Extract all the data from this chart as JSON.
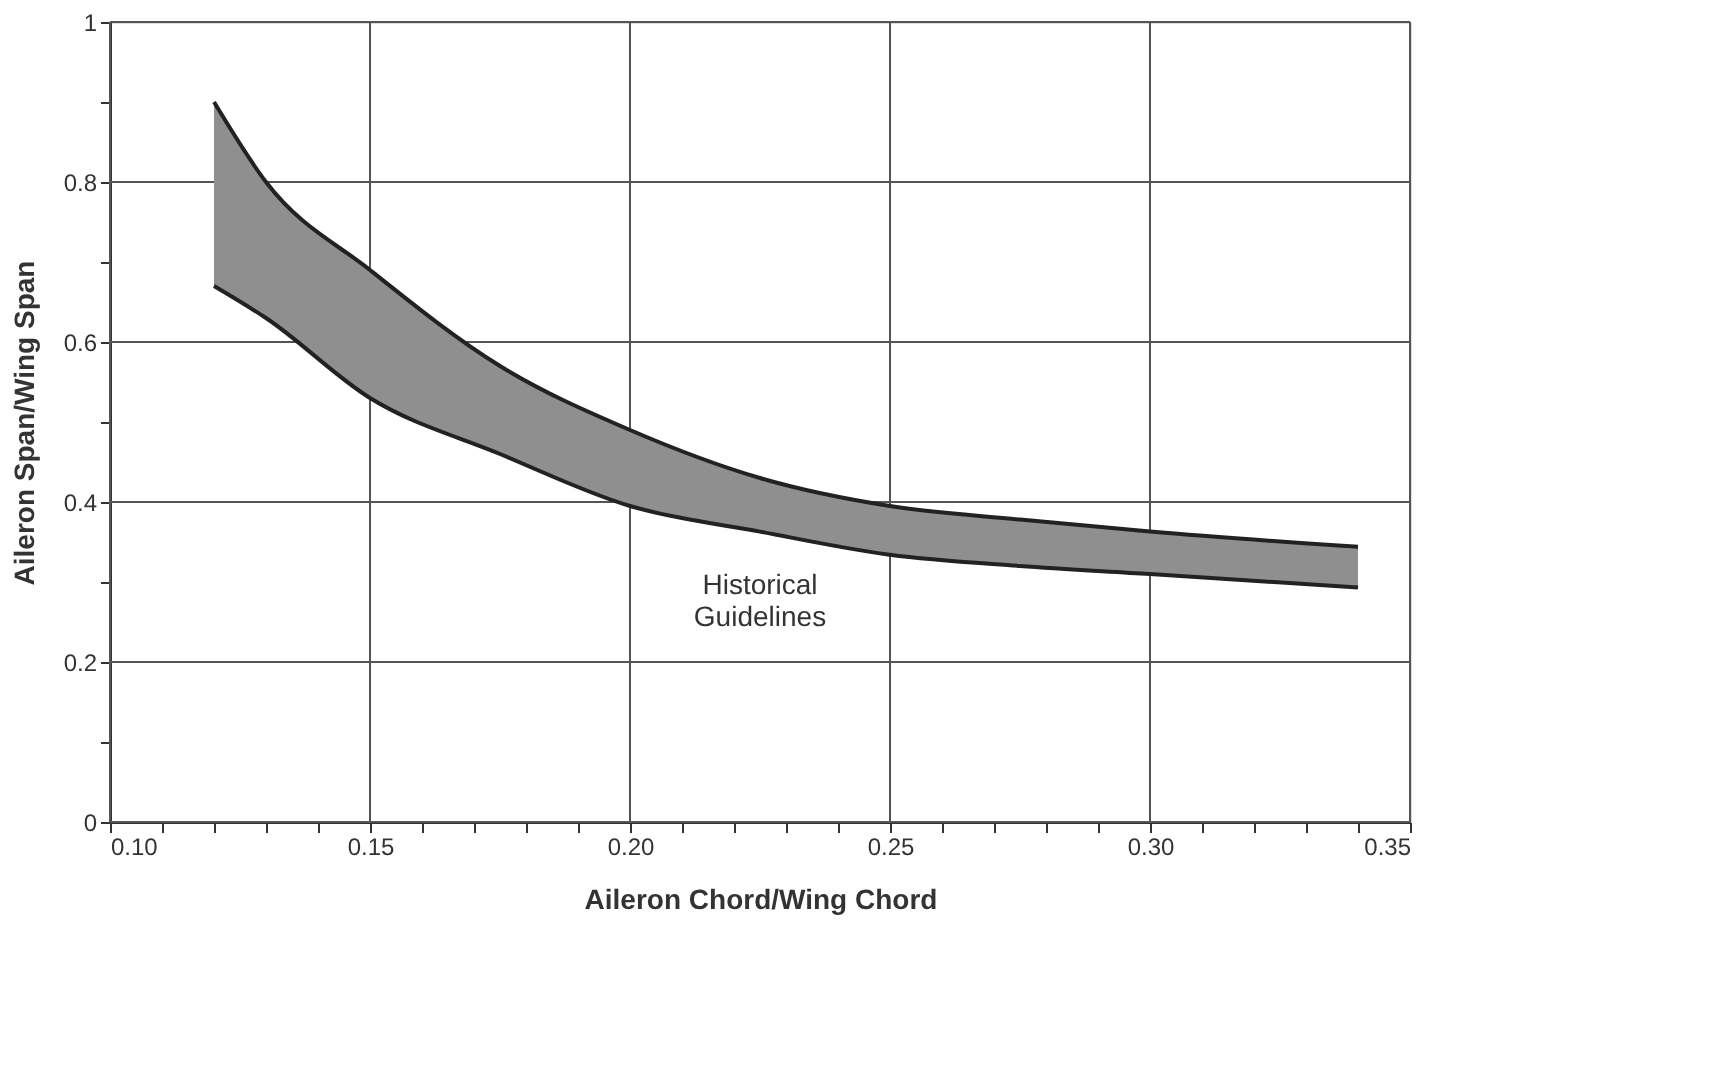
{
  "chart_data": {
    "type": "line",
    "xlabel": "Aileron Chord/Wing Chord",
    "ylabel": "Aileron Span/Wing Span",
    "x": [
      0.12,
      0.13,
      0.15,
      0.175,
      0.2,
      0.225,
      0.25,
      0.275,
      0.3,
      0.34
    ],
    "series": [
      {
        "color": "#222222",
        "values": [
          0.9,
          0.8,
          0.69,
          0.57,
          0.49,
          0.43,
          0.395,
          0.378,
          0.363,
          0.344
        ],
        "lower": [
          0.67,
          0.63,
          0.53,
          0.46,
          0.395,
          0.363,
          0.334,
          0.32,
          0.31,
          0.293
        ],
        "upper": [
          0.9,
          0.8,
          0.69,
          0.57,
          0.49,
          0.43,
          0.395,
          0.378,
          0.363,
          0.344
        ]
      },
      {
        "color": "#222222",
        "values": [
          0.67,
          0.63,
          0.53,
          0.46,
          0.395,
          0.363,
          0.334,
          0.32,
          0.31,
          0.293
        ]
      }
    ],
    "xlim": [
      0.1,
      0.35
    ],
    "xticks": [
      {
        "value": 0.1,
        "label": "0.10"
      },
      {
        "value": 0.11,
        "label": null
      },
      {
        "value": 0.12,
        "label": null
      },
      {
        "value": 0.13,
        "label": null
      },
      {
        "value": 0.14,
        "label": null
      },
      {
        "value": 0.15,
        "label": "0.15"
      },
      {
        "value": 0.16,
        "label": null
      },
      {
        "value": 0.17,
        "label": null
      },
      {
        "value": 0.18,
        "label": null
      },
      {
        "value": 0.19,
        "label": null
      },
      {
        "value": 0.2,
        "label": "0.20"
      },
      {
        "value": 0.21,
        "label": null
      },
      {
        "value": 0.22,
        "label": null
      },
      {
        "value": 0.23,
        "label": null
      },
      {
        "value": 0.24,
        "label": null
      },
      {
        "value": 0.25,
        "label": "0.25"
      },
      {
        "value": 0.26,
        "label": null
      },
      {
        "value": 0.27,
        "label": null
      },
      {
        "value": 0.28,
        "label": null
      },
      {
        "value": 0.29,
        "label": null
      },
      {
        "value": 0.3,
        "label": "0.30"
      },
      {
        "value": 0.31,
        "label": null
      },
      {
        "value": 0.32,
        "label": null
      },
      {
        "value": 0.33,
        "label": null
      },
      {
        "value": 0.34,
        "label": null
      },
      {
        "value": 0.35,
        "label": "0.35"
      }
    ],
    "ylim": [
      0,
      1
    ],
    "yticks": [
      0,
      {
        "value": 0.1,
        "label": null
      },
      0.2,
      {
        "value": 0.3,
        "label": null
      },
      0.4,
      {
        "value": 0.5,
        "label": null
      },
      0.6,
      {
        "value": 0.7,
        "label": null
      },
      0.8,
      {
        "value": 0.9,
        "label": null
      },
      1
    ],
    "grid": true,
    "annotations": [
      "Historical Guidelines"
    ]
  }
}
